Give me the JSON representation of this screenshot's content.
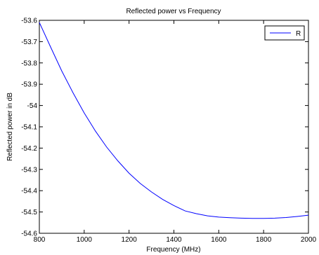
{
  "chart_data": {
    "type": "line",
    "title": "Reflected power vs Frequency",
    "xlabel": "Frequency (MHz)",
    "ylabel": "Reflected power in dB",
    "xlim": [
      800,
      2000
    ],
    "ylim": [
      -54.6,
      -53.6
    ],
    "x_ticks": [
      800,
      1000,
      1200,
      1400,
      1600,
      1800,
      2000
    ],
    "y_ticks": [
      -53.6,
      -53.7,
      -53.8,
      -53.9,
      -54,
      -54.1,
      -54.2,
      -54.3,
      -54.4,
      -54.5,
      -54.6
    ],
    "grid": false,
    "legend_position": "top-right",
    "series": [
      {
        "name": "R",
        "color": "#0000ff",
        "x": [
          800,
          850,
          900,
          950,
          1000,
          1050,
          1100,
          1150,
          1200,
          1250,
          1300,
          1350,
          1400,
          1450,
          1500,
          1550,
          1600,
          1650,
          1700,
          1750,
          1800,
          1850,
          1900,
          1950,
          2000
        ],
        "y": [
          -53.61,
          -53.725,
          -53.838,
          -53.94,
          -54.035,
          -54.12,
          -54.195,
          -54.26,
          -54.318,
          -54.366,
          -54.406,
          -54.441,
          -54.47,
          -54.495,
          -54.508,
          -54.518,
          -54.524,
          -54.527,
          -54.529,
          -54.53,
          -54.53,
          -54.529,
          -54.526,
          -54.521,
          -54.515
        ]
      }
    ]
  }
}
